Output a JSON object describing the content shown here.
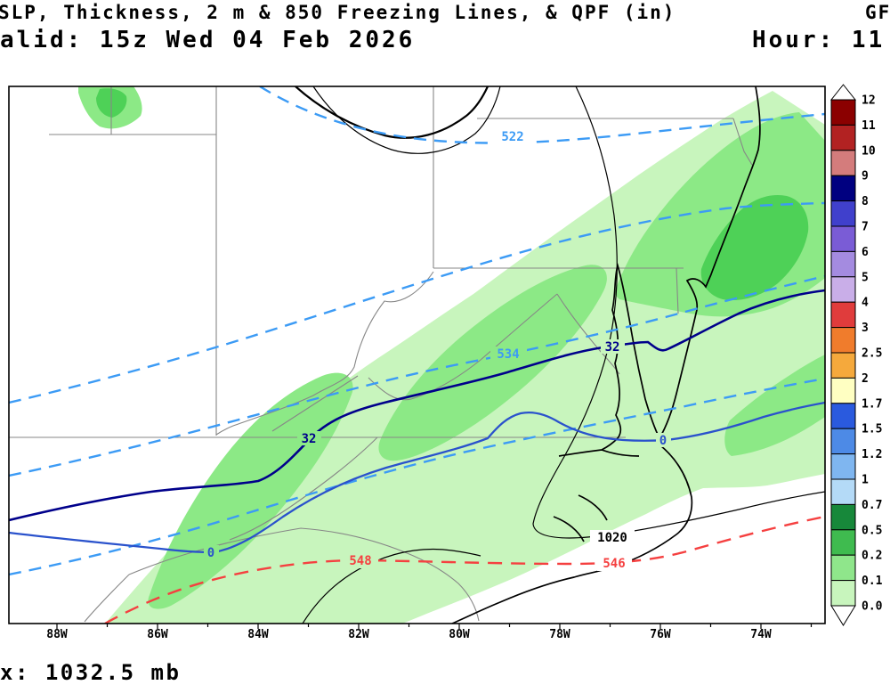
{
  "header": {
    "title_line": "SLP, Thickness, 2 m & 850 Freezing Lines, & QPF (in)",
    "model_label": "GF",
    "valid_line": "alid: 15z Wed 04 Feb 2026",
    "hour_label": "Hour: 11"
  },
  "footer": {
    "max_label": "x: 1032.5 mb"
  },
  "map": {
    "axis_labels": [
      "88W",
      "86W",
      "84W",
      "82W",
      "80W",
      "78W",
      "76W",
      "74W"
    ],
    "contour_labels": {
      "thickness_522": "522",
      "thickness_534": "534",
      "freezing_2m_west": "32",
      "freezing_2m_east": "32",
      "freezing_850_west": "0",
      "freezing_850_east": "0",
      "thickness_red_west": "548",
      "thickness_red_east": "546",
      "mslp_1020": "1020"
    },
    "colors": {
      "qpf_light": "#c8f5bd",
      "qpf_mid": "#8ce986",
      "qpf_dark": "#4ed157",
      "thickness_cold": "#3c9bf5",
      "thickness_warm": "#f54040",
      "freezing_2m": "#00008b",
      "freezing_850": "#2a52cc",
      "mslp": "#000000",
      "state_border": "#878787",
      "coastline": "#000000"
    }
  },
  "colorbar": {
    "labels": [
      "12",
      "11",
      "10",
      "9",
      "8",
      "7",
      "6",
      "5",
      "4",
      "3",
      "2.5",
      "2",
      "1.7",
      "1.5",
      "1.2",
      "1",
      "0.7",
      "0.5",
      "0.2",
      "0.1",
      "0.0"
    ],
    "cell_colors": [
      "#8b0000",
      "#b22222",
      "#d47c7c",
      "#000080",
      "#4040cc",
      "#7a5cd6",
      "#a48be0",
      "#c9aee8",
      "#e03c3c",
      "#f07c2c",
      "#f5a93c",
      "#ffffc2",
      "#2a5ade",
      "#4d8ae6",
      "#7fb6f0",
      "#b4daf7",
      "#17883a",
      "#3fbb4f",
      "#8fe68b",
      "#c8f5bd"
    ],
    "triangle_color": "#ffffff"
  }
}
